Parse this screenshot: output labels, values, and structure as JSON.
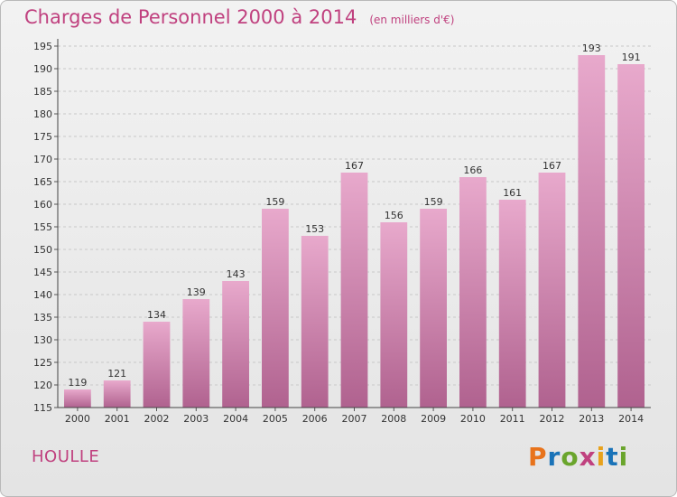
{
  "chart_data": {
    "type": "bar",
    "title": "Charges de Personnel 2000 à 2014",
    "subtitle": "(en milliers d'€)",
    "categories": [
      "2000",
      "2001",
      "2002",
      "2003",
      "2004",
      "2005",
      "2006",
      "2007",
      "2008",
      "2009",
      "2010",
      "2011",
      "2012",
      "2013",
      "2014"
    ],
    "values": [
      119,
      121,
      134,
      139,
      143,
      159,
      153,
      167,
      156,
      159,
      166,
      161,
      167,
      193,
      191
    ],
    "ylim": [
      115,
      195
    ],
    "yticks": [
      115,
      120,
      125,
      130,
      135,
      140,
      145,
      150,
      155,
      160,
      165,
      170,
      175,
      180,
      185,
      190,
      195
    ],
    "xlabel": "",
    "ylabel": "",
    "grid": true,
    "bar_color_top": "#e8a9cc",
    "bar_color_bottom": "#b0628f"
  },
  "footer": {
    "commune": "HOULLE",
    "logo_text": "Proxiti"
  },
  "colors": {
    "title": "#c0417f",
    "logo": [
      "#e8731c",
      "#1a73b8",
      "#6aa52c",
      "#c0417f",
      "#e8a21c",
      "#1a73b8",
      "#6aa52c"
    ]
  }
}
